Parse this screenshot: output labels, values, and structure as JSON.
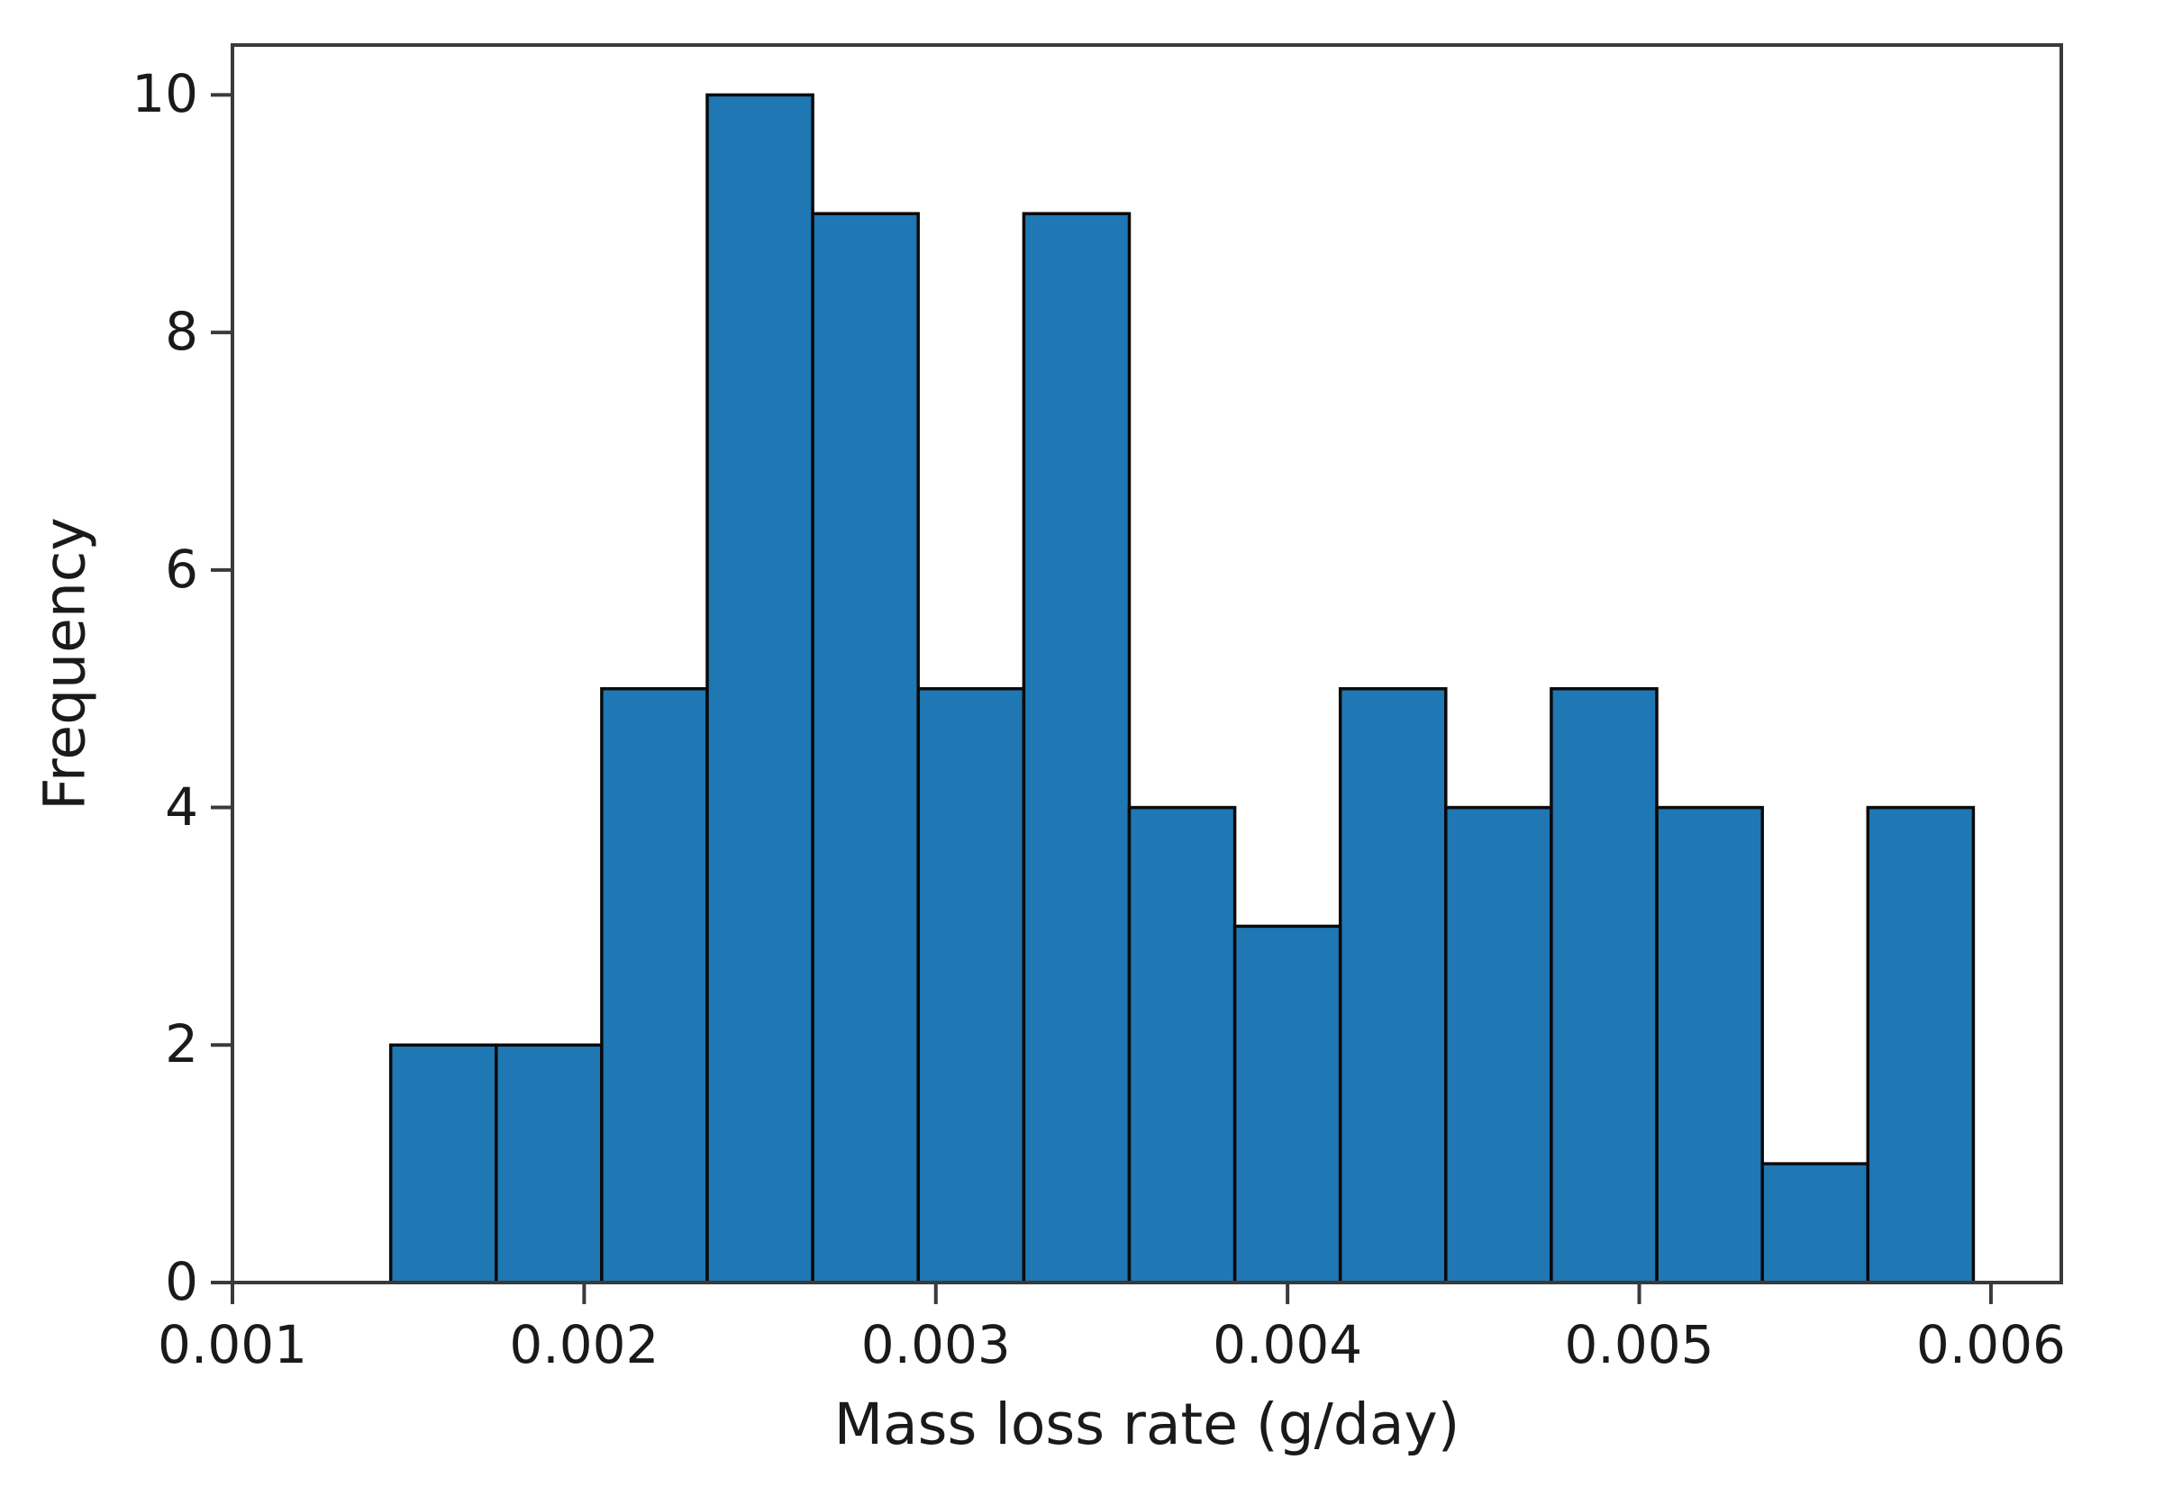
{
  "figure": {
    "background": "#ffffff"
  },
  "chart_data": {
    "type": "bar",
    "subtype": "histogram",
    "title": "",
    "xlabel": "Mass loss rate (g/day)",
    "ylabel": "Frequency",
    "bin_edges": [
      0.00145,
      0.00175,
      0.00205,
      0.00235,
      0.00265,
      0.00295,
      0.00325,
      0.00355,
      0.00385,
      0.00415,
      0.00445,
      0.00475,
      0.00505,
      0.00535,
      0.00565,
      0.00595
    ],
    "counts": [
      2,
      2,
      5,
      10,
      9,
      5,
      9,
      4,
      3,
      5,
      4,
      5,
      4,
      1,
      4
    ],
    "xticks": [
      0.001,
      0.002,
      0.003,
      0.004,
      0.005,
      0.006
    ],
    "xtick_labels": [
      "0.001",
      "0.002",
      "0.003",
      "0.004",
      "0.005",
      "0.006"
    ],
    "yticks": [
      0,
      2,
      4,
      6,
      8,
      10
    ],
    "ytick_labels": [
      "0",
      "2",
      "4",
      "6",
      "8",
      "10"
    ],
    "xlim": [
      0.001,
      0.0062
    ],
    "ylim": [
      0,
      10.42
    ],
    "grid": false,
    "legend_position": "none",
    "bar_color": "#1f77b4",
    "bar_edge_color": "#0a0a0a",
    "axis_color": "#3a3a3a",
    "text_color": "#1a1a1a"
  }
}
